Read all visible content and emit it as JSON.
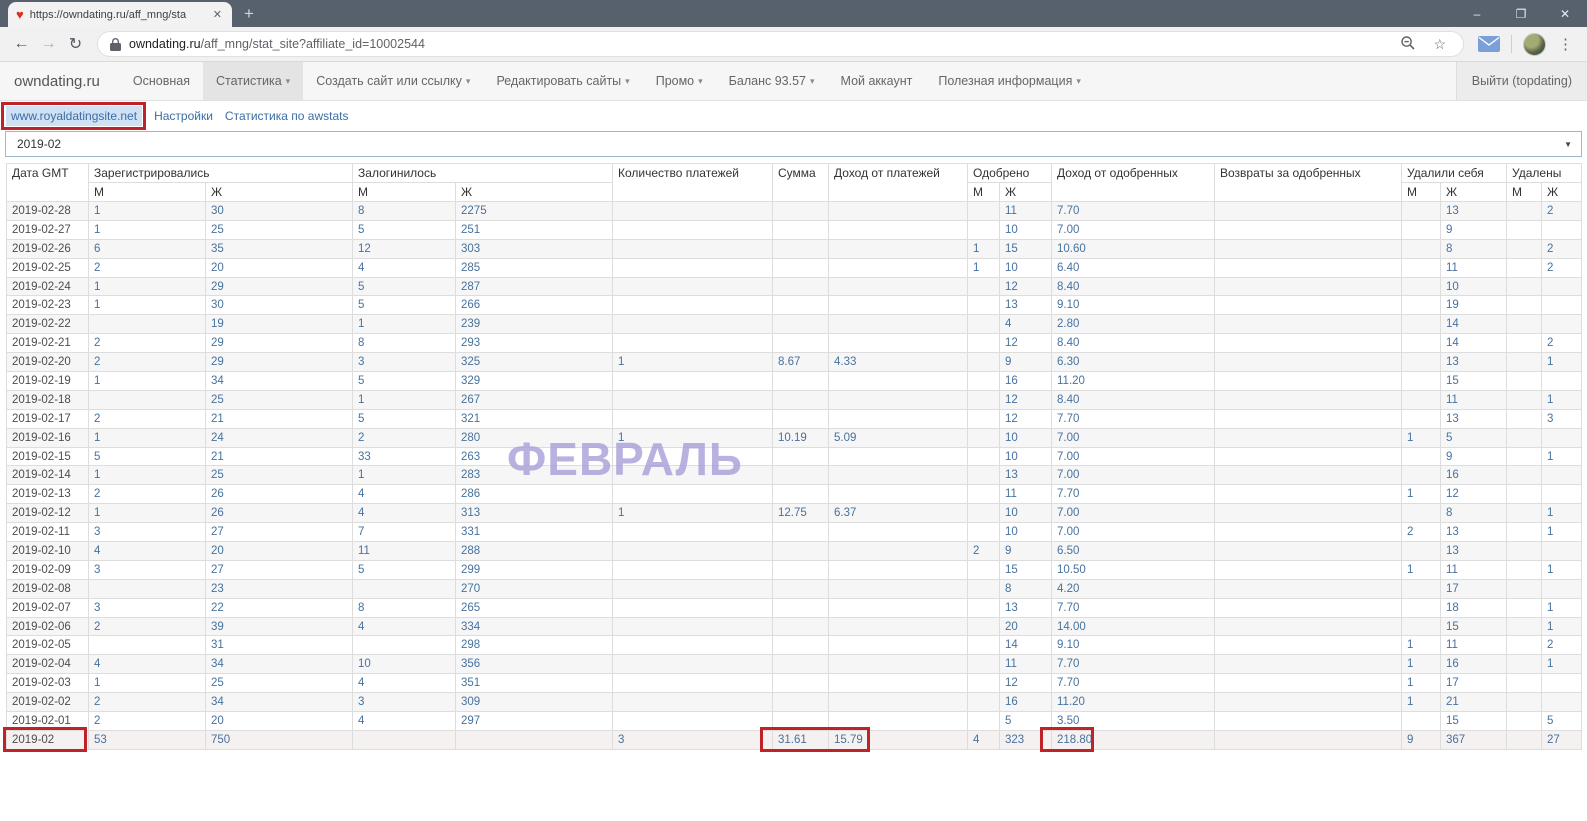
{
  "browser": {
    "tab": {
      "title": "https://owndating.ru/aff_mng/sta",
      "close_glyph": "✕"
    },
    "new_tab_glyph": "+",
    "window_controls": {
      "minimize": "–",
      "restore": "❐",
      "close": "✕"
    },
    "toolbar": {
      "back_glyph": "←",
      "forward_glyph": "→",
      "reload_glyph": "↻",
      "url_domain": "owndating.ru",
      "url_path": "/aff_mng/stat_site?affiliate_id=10002544",
      "zoom_glyph": "⊖",
      "star_glyph": "☆",
      "menu_glyph": "⋮"
    }
  },
  "nav": {
    "brand": "owndating.ru",
    "items": [
      {
        "label": "Основная"
      },
      {
        "label": "Статистика"
      },
      {
        "label": "Создать сайт или ссылку"
      },
      {
        "label": "Редактировать сайты"
      },
      {
        "label": "Промо"
      },
      {
        "label": "Баланс 93.57"
      },
      {
        "label": "Мой аккаунт"
      },
      {
        "label": "Полезная информация"
      }
    ],
    "logout": "Выйти (topdating)"
  },
  "subnav": {
    "site_link": "www.royaldatingsite.net",
    "settings": "Настройки",
    "awstats": "Статистика по awstats"
  },
  "period_select": {
    "value": "2019-02",
    "arrow_glyph": "▼"
  },
  "watermark": "ФЕВРАЛЬ",
  "table": {
    "headers": {
      "date": "Дата GMT",
      "registered": "Зарегистрировались",
      "logged_in": "Залогинилось",
      "payments_count": "Количество платежей",
      "sum": "Сумма",
      "payments_income": "Доход от платежей",
      "approved": "Одобрено",
      "approved_income": "Доход от одобренных",
      "refunds": "Возвраты за одобренных",
      "self_deleted": "Удалили себя",
      "deleted": "Удалены",
      "male": "М",
      "female": "Ж"
    },
    "rows": [
      [
        "2019-02-28",
        "1",
        "30",
        "8",
        "2275",
        "",
        "",
        "",
        "",
        "11",
        "7.70",
        "",
        "",
        "13",
        "",
        "2"
      ],
      [
        "2019-02-27",
        "1",
        "25",
        "5",
        "251",
        "",
        "",
        "",
        "",
        "10",
        "7.00",
        "",
        "",
        "9",
        "",
        ""
      ],
      [
        "2019-02-26",
        "6",
        "35",
        "12",
        "303",
        "",
        "",
        "",
        "1",
        "15",
        "10.60",
        "",
        "",
        "8",
        "",
        "2"
      ],
      [
        "2019-02-25",
        "2",
        "20",
        "4",
        "285",
        "",
        "",
        "",
        "1",
        "10",
        "6.40",
        "",
        "",
        "11",
        "",
        "2"
      ],
      [
        "2019-02-24",
        "1",
        "29",
        "5",
        "287",
        "",
        "",
        "",
        "",
        "12",
        "8.40",
        "",
        "",
        "10",
        "",
        ""
      ],
      [
        "2019-02-23",
        "1",
        "30",
        "5",
        "266",
        "",
        "",
        "",
        "",
        "13",
        "9.10",
        "",
        "",
        "19",
        "",
        ""
      ],
      [
        "2019-02-22",
        "",
        "19",
        "1",
        "239",
        "",
        "",
        "",
        "",
        "4",
        "2.80",
        "",
        "",
        "14",
        "",
        ""
      ],
      [
        "2019-02-21",
        "2",
        "29",
        "8",
        "293",
        "",
        "",
        "",
        "",
        "12",
        "8.40",
        "",
        "",
        "14",
        "",
        "2"
      ],
      [
        "2019-02-20",
        "2",
        "29",
        "3",
        "325",
        "1",
        "8.67",
        "4.33",
        "",
        "9",
        "6.30",
        "",
        "",
        "13",
        "",
        "1"
      ],
      [
        "2019-02-19",
        "1",
        "34",
        "5",
        "329",
        "",
        "",
        "",
        "",
        "16",
        "11.20",
        "",
        "",
        "15",
        "",
        ""
      ],
      [
        "2019-02-18",
        "",
        "25",
        "1",
        "267",
        "",
        "",
        "",
        "",
        "12",
        "8.40",
        "",
        "",
        "11",
        "",
        "1"
      ],
      [
        "2019-02-17",
        "2",
        "21",
        "5",
        "321",
        "",
        "",
        "",
        "",
        "12",
        "7.70",
        "",
        "",
        "13",
        "",
        "3"
      ],
      [
        "2019-02-16",
        "1",
        "24",
        "2",
        "280",
        "1",
        "10.19",
        "5.09",
        "",
        "10",
        "7.00",
        "",
        "1",
        "5",
        "",
        ""
      ],
      [
        "2019-02-15",
        "5",
        "21",
        "33",
        "263",
        "",
        "",
        "",
        "",
        "10",
        "7.00",
        "",
        "",
        "9",
        "",
        "1"
      ],
      [
        "2019-02-14",
        "1",
        "25",
        "1",
        "283",
        "",
        "",
        "",
        "",
        "13",
        "7.00",
        "",
        "",
        "16",
        "",
        ""
      ],
      [
        "2019-02-13",
        "2",
        "26",
        "4",
        "286",
        "",
        "",
        "",
        "",
        "11",
        "7.70",
        "",
        "1",
        "12",
        "",
        ""
      ],
      [
        "2019-02-12",
        "1",
        "26",
        "4",
        "313",
        "1",
        "12.75",
        "6.37",
        "",
        "10",
        "7.00",
        "",
        "",
        "8",
        "",
        "1"
      ],
      [
        "2019-02-11",
        "3",
        "27",
        "7",
        "331",
        "",
        "",
        "",
        "",
        "10",
        "7.00",
        "",
        "2",
        "13",
        "",
        "1"
      ],
      [
        "2019-02-10",
        "4",
        "20",
        "11",
        "288",
        "",
        "",
        "",
        "2",
        "9",
        "6.50",
        "",
        "",
        "13",
        "",
        ""
      ],
      [
        "2019-02-09",
        "3",
        "27",
        "5",
        "299",
        "",
        "",
        "",
        "",
        "15",
        "10.50",
        "",
        "1",
        "11",
        "",
        "1"
      ],
      [
        "2019-02-08",
        "",
        "23",
        "",
        "270",
        "",
        "",
        "",
        "",
        "8",
        "4.20",
        "",
        "",
        "17",
        "",
        ""
      ],
      [
        "2019-02-07",
        "3",
        "22",
        "8",
        "265",
        "",
        "",
        "",
        "",
        "13",
        "7.70",
        "",
        "",
        "18",
        "",
        "1"
      ],
      [
        "2019-02-06",
        "2",
        "39",
        "4",
        "334",
        "",
        "",
        "",
        "",
        "20",
        "14.00",
        "",
        "",
        "15",
        "",
        "1"
      ],
      [
        "2019-02-05",
        "",
        "31",
        "",
        "298",
        "",
        "",
        "",
        "",
        "14",
        "9.10",
        "",
        "1",
        "11",
        "",
        "2"
      ],
      [
        "2019-02-04",
        "4",
        "34",
        "10",
        "356",
        "",
        "",
        "",
        "",
        "11",
        "7.70",
        "",
        "1",
        "16",
        "",
        "1"
      ],
      [
        "2019-02-03",
        "1",
        "25",
        "4",
        "351",
        "",
        "",
        "",
        "",
        "12",
        "7.70",
        "",
        "1",
        "17",
        "",
        ""
      ],
      [
        "2019-02-02",
        "2",
        "34",
        "3",
        "309",
        "",
        "",
        "",
        "",
        "16",
        "11.20",
        "",
        "1",
        "21",
        "",
        ""
      ],
      [
        "2019-02-01",
        "2",
        "20",
        "4",
        "297",
        "",
        "",
        "",
        "",
        "5",
        "3.50",
        "",
        "",
        "15",
        "",
        "5"
      ]
    ],
    "totals": [
      "2019-02",
      "53",
      "750",
      "",
      "",
      "3",
      "31.61",
      "15.79",
      "4",
      "323",
      "218.80",
      "",
      "9",
      "367",
      "",
      "27"
    ]
  },
  "colors": {
    "accent_red": "#bf2227",
    "link_blue": "#3a6ea5",
    "number_blue": "#47729e",
    "watermark_purple": "#a89ed8",
    "frame_gray": "#56616d"
  }
}
